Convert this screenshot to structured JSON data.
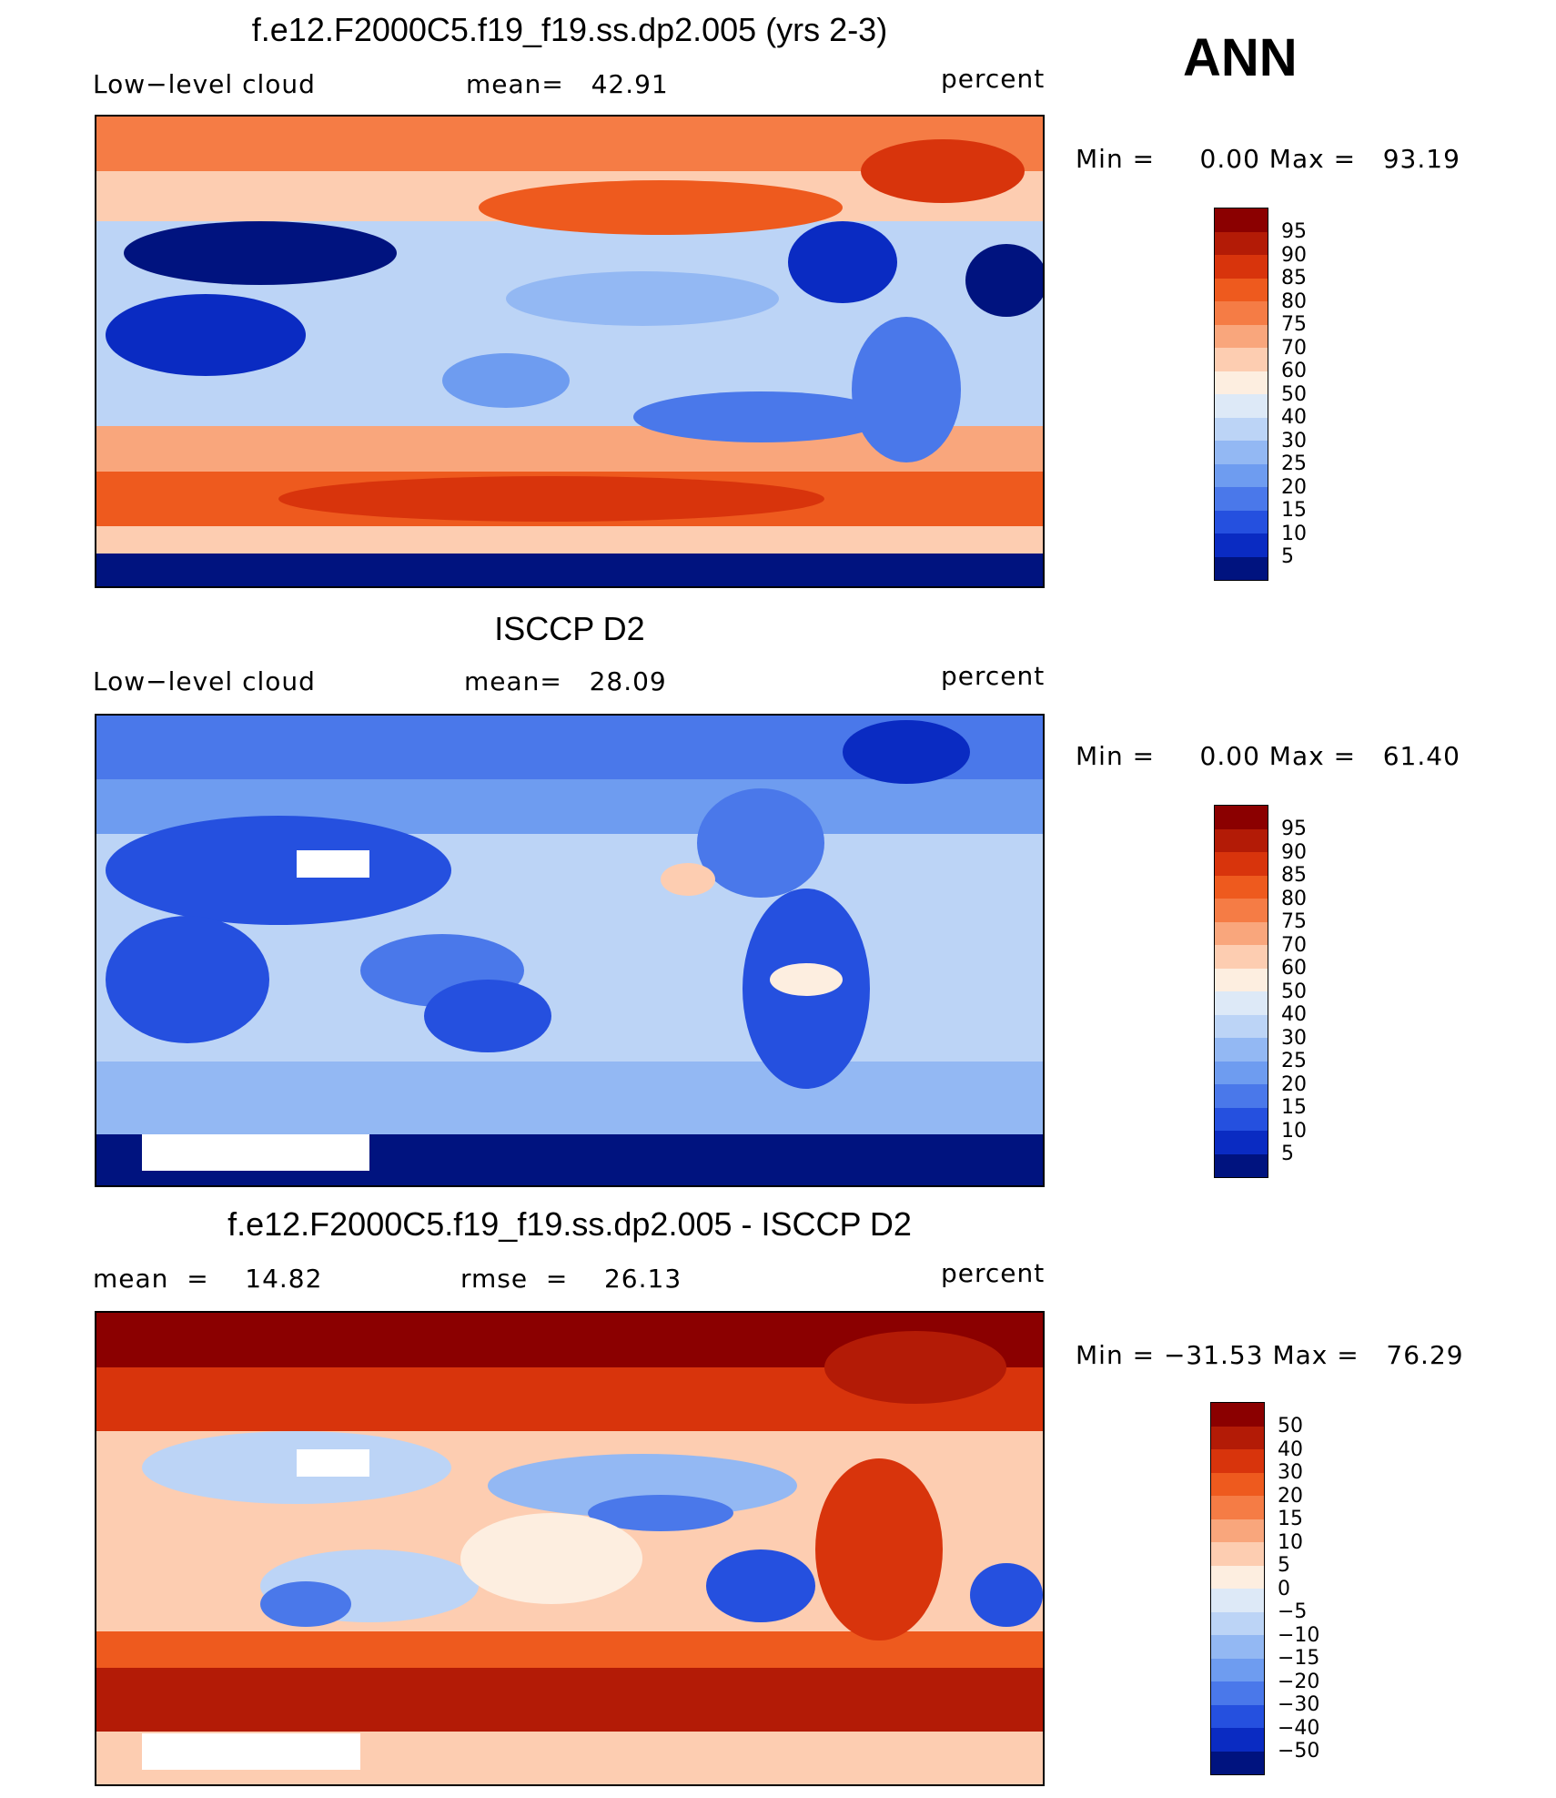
{
  "season": "ANN",
  "units_label": "percent",
  "panels": [
    {
      "title": "f.e12.F2000C5.f19_f19.ss.dp2.005 (yrs 2-3)",
      "left_label": "Low−level cloud",
      "mid_label": "mean=   42.91",
      "minmax": "Min =     0.00 Max =   93.19"
    },
    {
      "title": "ISCCP D2",
      "left_label": "Low−level cloud",
      "mid_label": "mean=   28.09",
      "minmax": "Min =     0.00 Max =   61.40"
    },
    {
      "title": "f.e12.F2000C5.f19_f19.ss.dp2.005 - ISCCP D2",
      "left_label": "mean  =    14.82",
      "mid_label": "rmse  =    26.13",
      "minmax": "Min = −31.53 Max =   76.29"
    }
  ],
  "colorbars": {
    "abs": {
      "labels": [
        "95",
        "90",
        "85",
        "80",
        "75",
        "70",
        "60",
        "50",
        "40",
        "30",
        "25",
        "20",
        "15",
        "10",
        "5"
      ],
      "colors": [
        "#8b0000",
        "#b31b06",
        "#d8340c",
        "#ee5a1e",
        "#f57c45",
        "#f9a67c",
        "#fdcdb1",
        "#fdeee0",
        "#dde9f7",
        "#bcd4f6",
        "#93b8f3",
        "#6e9cf0",
        "#4a78ea",
        "#2550df",
        "#0a2bc2",
        "#00137f"
      ]
    },
    "diff": {
      "labels": [
        "50",
        "40",
        "30",
        "20",
        "15",
        "10",
        "5",
        "0",
        "−5",
        "−10",
        "−15",
        "−20",
        "−30",
        "−40",
        "−50"
      ],
      "colors": [
        "#8b0000",
        "#b31b06",
        "#d8340c",
        "#ee5a1e",
        "#f57c45",
        "#f9a67c",
        "#fdcdb1",
        "#fdeee0",
        "#dde9f7",
        "#bcd4f6",
        "#93b8f3",
        "#6e9cf0",
        "#4a78ea",
        "#2550df",
        "#0a2bc2",
        "#00137f"
      ]
    }
  },
  "chart_data": [
    {
      "type": "heatmap",
      "title": "f.e12.F2000C5.f19_f19.ss.dp2.005 (yrs 2-3)",
      "variable": "Low−level cloud",
      "units": "percent",
      "mean": 42.91,
      "min": 0.0,
      "max": 93.19,
      "levels": [
        5,
        10,
        15,
        20,
        25,
        30,
        40,
        50,
        60,
        70,
        75,
        80,
        85,
        90,
        95
      ]
    },
    {
      "type": "heatmap",
      "title": "ISCCP D2",
      "variable": "Low−level cloud",
      "units": "percent",
      "mean": 28.09,
      "min": 0.0,
      "max": 61.4,
      "levels": [
        5,
        10,
        15,
        20,
        25,
        30,
        40,
        50,
        60,
        70,
        75,
        80,
        85,
        90,
        95
      ]
    },
    {
      "type": "heatmap",
      "title": "f.e12.F2000C5.f19_f19.ss.dp2.005 - ISCCP D2",
      "units": "percent",
      "mean": 14.82,
      "rmse": 26.13,
      "min": -31.53,
      "max": 76.29,
      "levels": [
        -50,
        -40,
        -30,
        -20,
        -15,
        -10,
        -5,
        0,
        5,
        10,
        15,
        20,
        30,
        40,
        50
      ]
    }
  ]
}
